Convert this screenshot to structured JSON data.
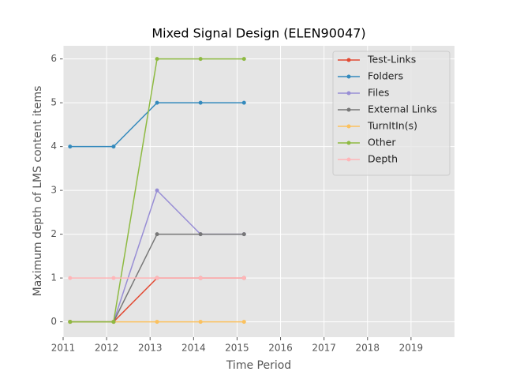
{
  "chart_data": {
    "type": "line",
    "title": "Mixed Signal Design (ELEN90047)",
    "x_label": "Time Period",
    "y_label": "Maximum depth of LMS content items",
    "x": [
      2011.16,
      2012.16,
      2013.16,
      2014.16,
      2015.16
    ],
    "series": [
      {
        "name": "Test-Links",
        "color": "#E24A33",
        "values": [
          0,
          0,
          1,
          1,
          1
        ]
      },
      {
        "name": "Folders",
        "color": "#348ABD",
        "values": [
          4,
          4,
          5,
          5,
          5
        ]
      },
      {
        "name": "Files",
        "color": "#988ED5",
        "values": [
          0,
          0,
          3,
          2,
          2
        ]
      },
      {
        "name": "External Links",
        "color": "#777777",
        "values": [
          0,
          0,
          2,
          2,
          2
        ]
      },
      {
        "name": "TurnItIn(s)",
        "color": "#FBC15E",
        "values": [
          0,
          0,
          0,
          0,
          0
        ]
      },
      {
        "name": "Other",
        "color": "#8EBA42",
        "values": [
          0,
          0,
          6,
          6,
          6
        ]
      },
      {
        "name": "Depth",
        "color": "#FFB5B8",
        "values": [
          1,
          1,
          1,
          1,
          1
        ]
      }
    ],
    "xlim": [
      2011,
      2020
    ],
    "xticks": [
      2011,
      2012,
      2013,
      2014,
      2015,
      2016,
      2017,
      2018,
      2019
    ],
    "ylim": [
      -0.35,
      6.3
    ],
    "yticks": [
      0,
      1,
      2,
      3,
      4,
      5,
      6
    ],
    "grid": true,
    "legend": "upper right"
  }
}
